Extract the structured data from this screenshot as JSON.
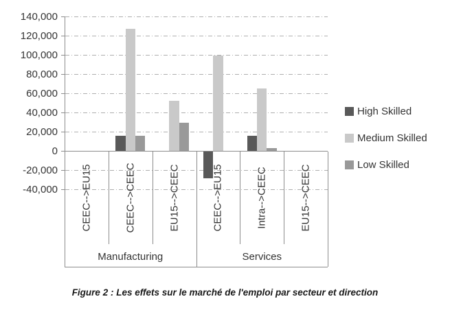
{
  "figure": {
    "caption": "Figure 2 : Les effets sur le marché de l'emploi par secteur et direction"
  },
  "chart_data": {
    "type": "bar",
    "title": "",
    "xlabel": "",
    "ylabel": "",
    "y_axis": {
      "min": -40000,
      "max": 140000,
      "step": 20000,
      "tick_format": "#,##0"
    },
    "grid": "horizontal dash-dot",
    "legend_position": "right",
    "sectors": [
      {
        "name": "Manufacturing",
        "categories": [
          "CEEC-->EU15",
          "CEEC-->CEEC",
          "EU15-->CEEC"
        ]
      },
      {
        "name": "Services",
        "categories": [
          "CEEC-->EU15",
          "Intra-->CEEC",
          "EU15-->CEEC"
        ]
      }
    ],
    "categories": [
      "CEEC-->EU15",
      "CEEC-->CEEC",
      "EU15-->CEEC",
      "CEEC-->EU15",
      "Intra-->CEEC",
      "EU15-->CEEC"
    ],
    "series": [
      {
        "name": "High Skilled",
        "color": "#595959",
        "values": [
          0,
          16000,
          0,
          -28000,
          16000,
          0
        ]
      },
      {
        "name": "Medium Skilled",
        "color": "#c9c9c9",
        "values": [
          0,
          127000,
          52000,
          99000,
          65000,
          0
        ]
      },
      {
        "name": "Low Skilled",
        "color": "#999999",
        "values": [
          0,
          16000,
          29000,
          0,
          3000,
          0
        ]
      }
    ]
  },
  "colors": {
    "axis_line": "#8c8c8c",
    "gridline": "#adadad",
    "text": "#333333"
  }
}
